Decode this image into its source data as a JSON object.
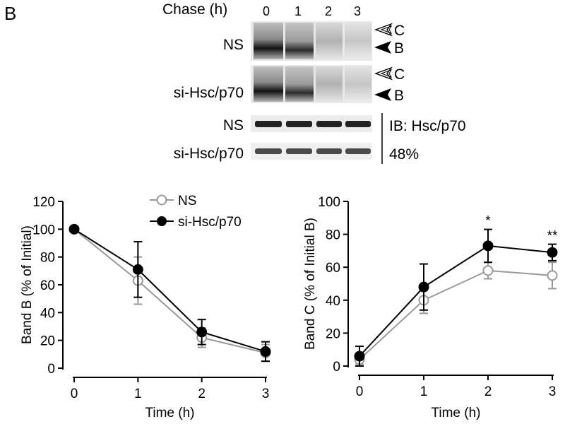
{
  "figure": {
    "panel_label": "B",
    "chase_label": "Chase (h)",
    "lanes": [
      "0",
      "1",
      "2",
      "3"
    ],
    "blots": [
      {
        "label": "NS",
        "arrows": [
          "C",
          "B"
        ]
      },
      {
        "label": "si-Hsc/p70",
        "arrows": [
          "C",
          "B"
        ]
      },
      {
        "label": "NS"
      },
      {
        "label": "si-Hsc/p70"
      }
    ],
    "ib_label": "IB: Hsc/p70",
    "knockdown_label": "48%"
  },
  "chart_data": [
    {
      "type": "line",
      "title": "",
      "xlabel": "Time (h)",
      "ylabel": "Band B (% of Initial)",
      "x": [
        0,
        1,
        2,
        3
      ],
      "xlim": [
        0,
        3
      ],
      "ylim": [
        0,
        120
      ],
      "xticks": [
        "0",
        "1",
        "2",
        "3"
      ],
      "yticks": [
        "0",
        "20",
        "40",
        "60",
        "80",
        "100",
        "120"
      ],
      "grid": false,
      "legend": "top-right",
      "series": [
        {
          "name": "NS",
          "color": "#999999",
          "marker": "open-circle",
          "values": [
            100,
            63,
            22,
            11
          ],
          "err": [
            2,
            17,
            7,
            6
          ]
        },
        {
          "name": "si-Hsc/p70",
          "color": "#000000",
          "marker": "filled-circle",
          "values": [
            100,
            71,
            26,
            12
          ],
          "err": [
            2,
            20,
            9,
            7
          ]
        }
      ],
      "annotations": []
    },
    {
      "type": "line",
      "title": "",
      "xlabel": "Time (h)",
      "ylabel": "Band C (% of Initial B)",
      "x": [
        0,
        1,
        2,
        3
      ],
      "xlim": [
        0,
        3
      ],
      "ylim": [
        0,
        100
      ],
      "xticks": [
        "0",
        "1",
        "2",
        "3"
      ],
      "yticks": [
        "0",
        "20",
        "40",
        "60",
        "80",
        "100"
      ],
      "grid": false,
      "series": [
        {
          "name": "NS",
          "color": "#999999",
          "marker": "open-circle",
          "values": [
            4,
            40,
            58,
            55
          ],
          "err": [
            3,
            8,
            5,
            8
          ]
        },
        {
          "name": "si-Hsc/p70",
          "color": "#000000",
          "marker": "filled-circle",
          "values": [
            6,
            48,
            73,
            69
          ],
          "err": [
            6,
            14,
            10,
            5
          ]
        }
      ],
      "annotations": [
        {
          "x": 2,
          "text": "*"
        },
        {
          "x": 3,
          "text": "**"
        }
      ]
    }
  ]
}
